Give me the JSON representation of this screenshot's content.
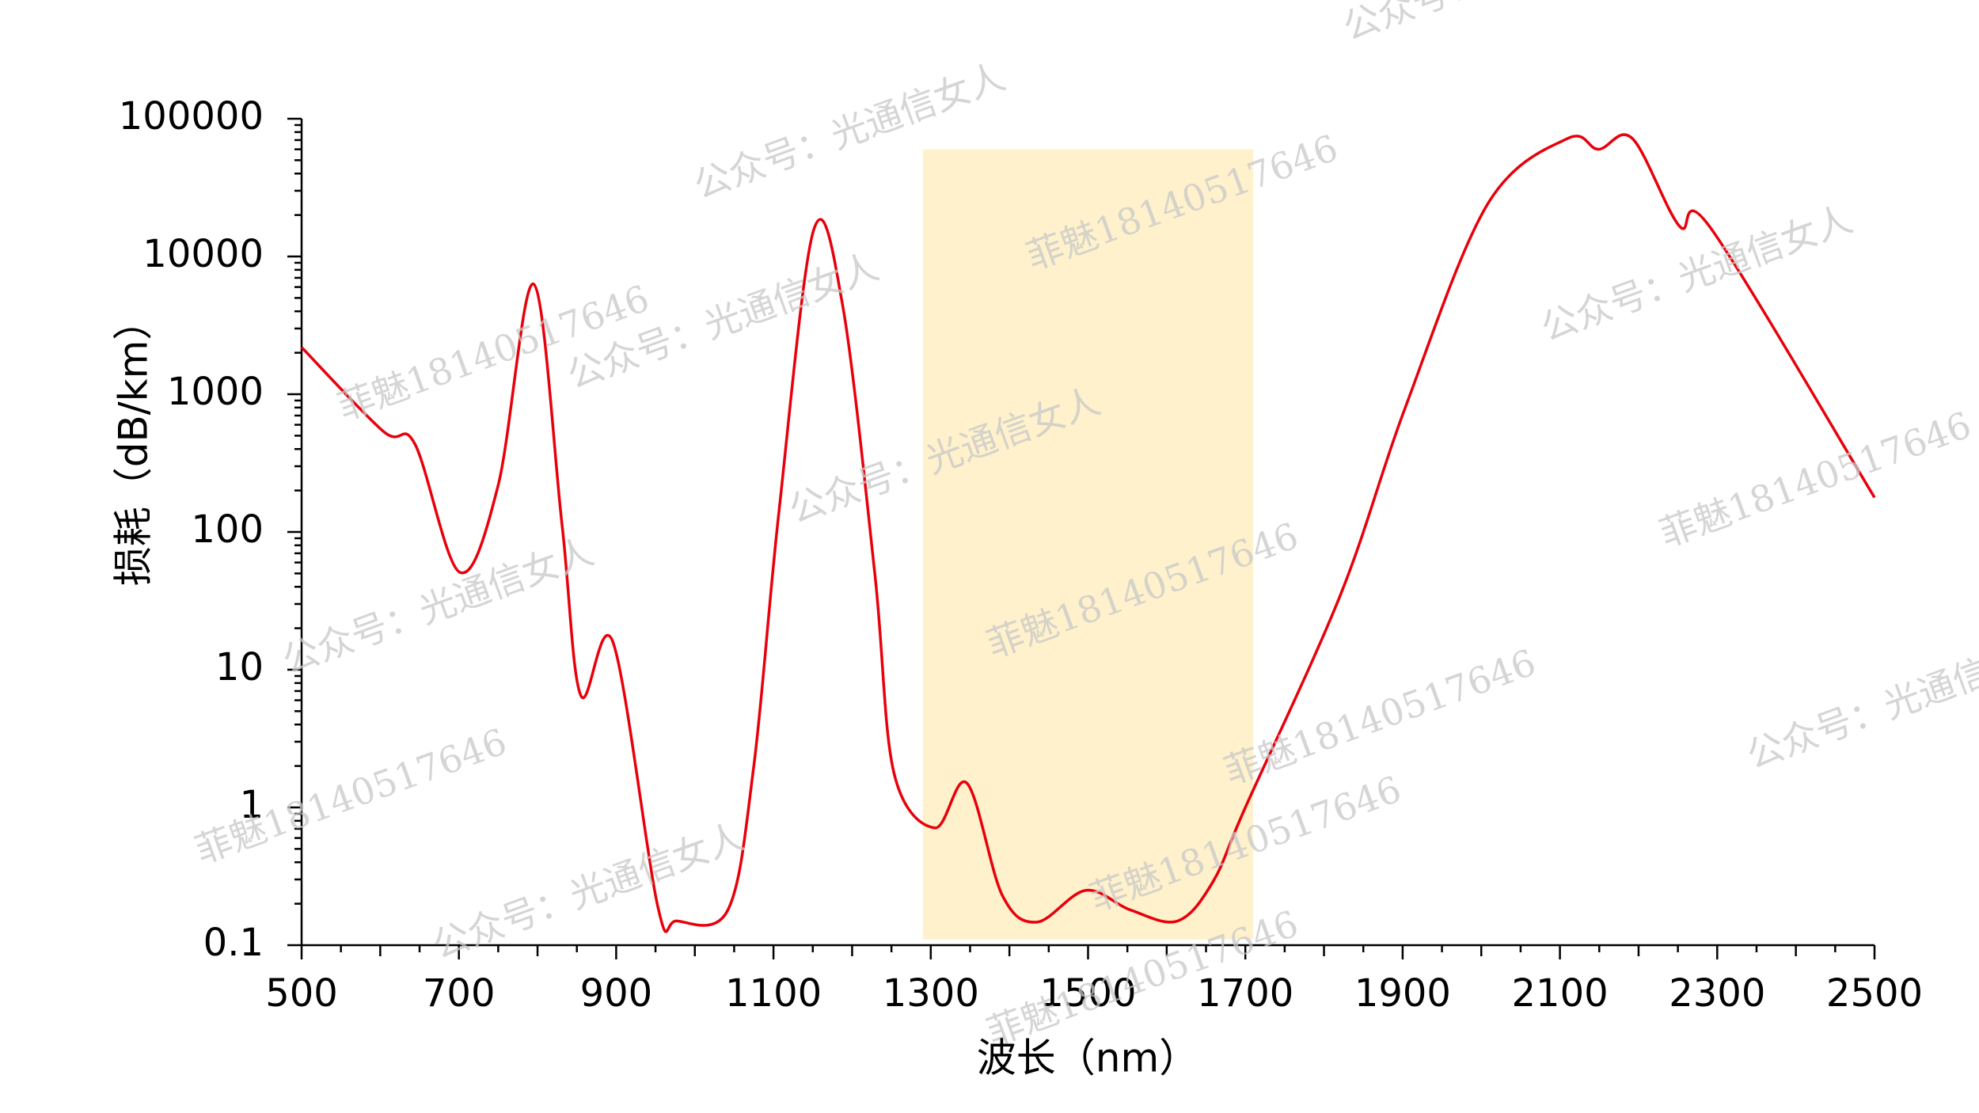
{
  "chart_data": {
    "type": "line",
    "xlabel": "波长（nm）",
    "ylabel": "损耗（dB/km）",
    "x": [
      500,
      604,
      644,
      701,
      750,
      795,
      831,
      855,
      896,
      953,
      977,
      1042,
      1075,
      1107,
      1151,
      1188,
      1229,
      1253,
      1305,
      1346,
      1391,
      1435,
      1497,
      1554,
      1614,
      1659,
      1700,
      1821,
      1903,
      2008,
      2110,
      2149,
      2192,
      2252,
      2292,
      2500
    ],
    "series": [
      {
        "color": "#e8000b",
        "values": [
          2190,
          537,
          436,
          51,
          219,
          6300,
          115,
          6.5,
          15.8,
          0.19,
          0.15,
          0.18,
          2.0,
          141,
          15500,
          4400,
          49,
          1.8,
          0.71,
          1.5,
          0.23,
          0.147,
          0.25,
          0.18,
          0.15,
          0.29,
          1.0,
          35,
          790,
          24000,
          72000,
          60000,
          72000,
          16600,
          16000,
          178
        ]
      }
    ],
    "band": {
      "x": [
        1290,
        1710
      ],
      "y": [
        0.11,
        60000
      ],
      "color": "#fef1cc"
    },
    "xlim": [
      500,
      2500
    ],
    "xticks": [
      500,
      700,
      900,
      1100,
      1300,
      1500,
      1700,
      1900,
      2100,
      2300,
      2500
    ],
    "ylim": [
      0.1,
      100000
    ],
    "yticks": [
      0.1,
      1,
      10,
      100,
      1000,
      10000,
      100000
    ],
    "ylog": true,
    "watermarks": [
      "公众号：光通信女人",
      "菲魅18140517646"
    ]
  }
}
